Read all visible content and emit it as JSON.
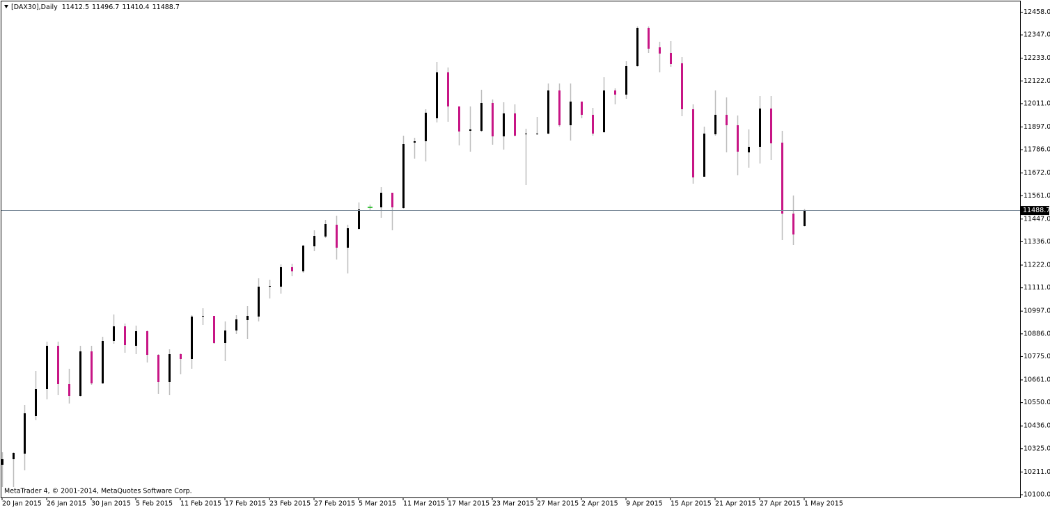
{
  "chart_data": {
    "type": "candlestick",
    "title": "[DAX30],Daily",
    "footer": "MetaTrader 4, © 2001-2014, MetaQuotes Software Corp.",
    "categories": [
      "20 Jan 2015",
      null,
      null,
      null,
      "26 Jan 2015",
      null,
      null,
      null,
      "30 Jan 2015",
      null,
      null,
      null,
      "5 Feb 2015",
      null,
      null,
      null,
      "11 Feb 2015",
      null,
      null,
      null,
      "17 Feb 2015",
      null,
      null,
      null,
      "23 Feb 2015",
      null,
      null,
      null,
      "27 Feb 2015",
      null,
      null,
      null,
      "5 Mar 2015",
      null,
      null,
      null,
      "11 Mar 2015",
      null,
      null,
      null,
      "17 Mar 2015",
      null,
      null,
      null,
      "23 Mar 2015",
      null,
      null,
      null,
      "27 Mar 2015",
      null,
      null,
      null,
      "2 Apr 2015",
      null,
      null,
      null,
      "9 Apr 2015",
      null,
      null,
      null,
      "15 Apr 2015",
      null,
      null,
      null,
      "21 Apr 2015",
      null,
      null,
      null,
      "27 Apr 2015",
      null,
      null,
      null,
      "1 May 2015"
    ],
    "open": [
      10246.2,
      10273.4,
      10300.6,
      10484.2,
      10616.8,
      10827.6,
      10640.6,
      10582.8,
      10800.4,
      10644.0,
      10851.4,
      10922.8,
      10827.6,
      10899.0,
      10783.4,
      10650.8,
      10786.8,
      10763.0,
      10970.4,
      10973.8,
      10841.2,
      10902.4,
      10953.4,
      10970.4,
      11116.6,
      11116.6,
      11211.8,
      11191.4,
      11313.8,
      11361.4,
      11419.2,
      11307.0,
      11398.8,
      11504.2,
      11504.2,
      11575.6,
      11500.8,
      11820.4,
      11827.2,
      11939.4,
      12163.8,
      11997.2,
      11878.2,
      11878.2,
      12014.2,
      11851.0,
      11963.2,
      11861.2,
      11861.2,
      11864.6,
      12075.4,
      11905.4,
      12021.0,
      11956.4,
      11871.4,
      12075.4,
      12055.0,
      12194.4,
      12381.4,
      12286.2,
      12259.0,
      12208.0,
      11983.6,
      11653.8,
      11861.2,
      11956.4,
      11905.4,
      11772.8,
      11800.0,
      11987.0,
      11820.4,
      11473.6,
      11412.5
    ],
    "high": [
      10307.4,
      10307.4,
      10538.6,
      10705.2,
      10848.0,
      10848.0,
      10715.4,
      10827.6,
      10827.6,
      10871.8,
      10980.6,
      10936.4,
      10926.2,
      10902.4,
      10786.8,
      10810.6,
      10790.2,
      10977.2,
      11011.2,
      10973.8,
      10946.6,
      10977.2,
      11021.4,
      11157.4,
      11150.6,
      11225.4,
      11228.8,
      11320.6,
      11392.0,
      11443.0,
      11463.4,
      11419.2,
      11528.0,
      11517.8,
      11602.8,
      11575.6,
      11854.4,
      11844.2,
      11983.6,
      12214.8,
      12187.6,
      11997.2,
      11997.2,
      12078.8,
      12031.2,
      12017.6,
      12007.4,
      11888.4,
      11946.2,
      12109.4,
      12109.4,
      12109.4,
      12021.0,
      11990.4,
      12140.0,
      12085.6,
      12218.2,
      12388.2,
      12388.2,
      12313.4,
      12316.8,
      12238.6,
      12007.4,
      11898.6,
      12075.4,
      12041.4,
      11953.0,
      11885.0,
      12048.2,
      12048.2,
      11878.2,
      11562.0,
      11496.7
    ],
    "low": [
      10137.4,
      10137.4,
      10219.0,
      10463.8,
      10565.8,
      10586.2,
      10545.4,
      10579.4,
      10637.2,
      10640.6,
      10837.8,
      10793.6,
      10786.8,
      10746.0,
      10593.0,
      10586.2,
      10688.2,
      10715.4,
      10929.6,
      10837.8,
      10752.8,
      10885.4,
      10861.6,
      10946.6,
      11058.8,
      11082.6,
      11167.6,
      11184.6,
      11290.0,
      11354.6,
      11249.2,
      11181.2,
      11395.4,
      11490.6,
      11453.2,
      11392.0,
      11497.4,
      11742.2,
      11728.6,
      11919.0,
      11922.4,
      11806.8,
      11776.2,
      11871.4,
      11810.2,
      11786.4,
      11851.0,
      11613.0,
      11857.8,
      11861.2,
      11898.6,
      11830.6,
      11939.4,
      11854.4,
      11868.0,
      12007.4,
      12034.6,
      12191.0,
      12259.0,
      12163.8,
      12191.0,
      11949.6,
      11619.8,
      11653.8,
      11854.4,
      11772.8,
      11660.6,
      11698.0,
      11718.4,
      11735.4,
      11344.4,
      11320.6,
      11410.4
    ],
    "close": [
      10273.4,
      10304.0,
      10497.8,
      10616.8,
      10827.6,
      10640.6,
      10582.8,
      10800.4,
      10644.0,
      10851.4,
      10922.8,
      10831.0,
      10899.0,
      10783.4,
      10650.8,
      10786.8,
      10763.0,
      10970.4,
      10973.8,
      10841.2,
      10902.4,
      10956.8,
      10973.8,
      11116.6,
      11120.0,
      11211.8,
      11191.4,
      11317.2,
      11364.8,
      11422.6,
      11307.0,
      11402.2,
      11494.0,
      11504.2,
      11575.6,
      11504.2,
      11813.6,
      11827.2,
      11966.6,
      12163.8,
      11997.2,
      11874.8,
      11885.0,
      12014.2,
      11851.0,
      11963.2,
      11854.4,
      11864.6,
      11864.6,
      12075.4,
      11905.4,
      12021.0,
      11956.4,
      11864.6,
      12075.4,
      12055.0,
      12194.4,
      12381.4,
      12279.4,
      12255.6,
      12204.6,
      11983.6,
      11650.4,
      11864.6,
      11956.4,
      11905.4,
      11776.2,
      11800.0,
      11987.0,
      11817.0,
      11473.6,
      11371.6,
      11488.7
    ],
    "colors": {
      "up": "#000000",
      "down": "#c71585",
      "doji": "#00b400",
      "wick": "#bdbdbd",
      "last_price": "#7a8a99"
    },
    "ylim": [
      10086.4,
      12514.0
    ],
    "yticks": [
      {
        "value": 12458,
        "label": "12458.0"
      },
      {
        "value": 12347,
        "label": "12347.0"
      },
      {
        "value": 12233,
        "label": "12233.0"
      },
      {
        "value": 12122,
        "label": "12122.0"
      },
      {
        "value": 12011,
        "label": "12011.0"
      },
      {
        "value": 11897,
        "label": "11897.0"
      },
      {
        "value": 11786,
        "label": "11786.0"
      },
      {
        "value": 11672,
        "label": "11672.0"
      },
      {
        "value": 11561,
        "label": "11561.0"
      },
      {
        "value": 11447,
        "label": "11447.0"
      },
      {
        "value": 11336,
        "label": "11336.0"
      },
      {
        "value": 11222,
        "label": "11222.0"
      },
      {
        "value": 11111,
        "label": "11111.0"
      },
      {
        "value": 10997,
        "label": "10997.0"
      },
      {
        "value": 10886,
        "label": "10886.0"
      },
      {
        "value": 10775,
        "label": "10775.0"
      },
      {
        "value": 10661,
        "label": "10661.0"
      },
      {
        "value": 10550,
        "label": "10550.0"
      },
      {
        "value": 10436,
        "label": "10436.0"
      },
      {
        "value": 10325,
        "label": "10325.0"
      },
      {
        "value": 10211,
        "label": "10211.0"
      },
      {
        "value": 10100,
        "label": "10100.0"
      }
    ],
    "grid": false
  }
}
